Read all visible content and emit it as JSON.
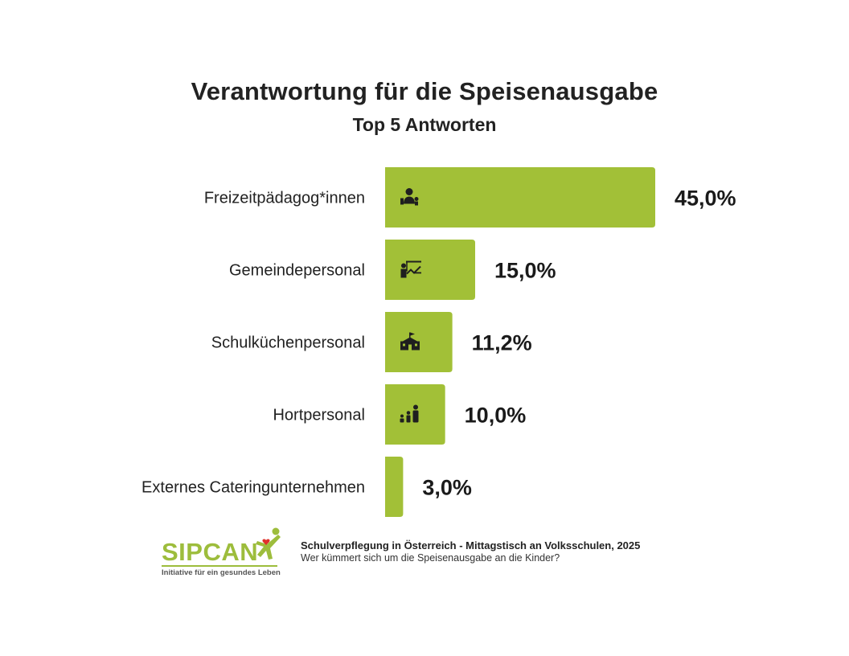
{
  "chart_data": {
    "type": "bar",
    "orientation": "horizontal",
    "title": "Verantwortung für die Speisenausgabe",
    "subtitle": "Top 5 Antworten",
    "categories": [
      "Freizeitpädagog*innen",
      "Gemeindepersonal",
      "Schulküchenpersonal",
      "Hortpersonal",
      "Externes Cateringunternehmen"
    ],
    "values": [
      45.0,
      15.0,
      11.2,
      10.0,
      3.0
    ],
    "value_labels": [
      "45,0%",
      "15,0%",
      "11,2%",
      "10,0%",
      "3,0%"
    ],
    "icons": [
      "caregiver-icon",
      "teacher-board-icon",
      "school-building-icon",
      "family-icon",
      null
    ],
    "bar_color": "#a2c037",
    "xlim": [
      0,
      45
    ],
    "grid": false,
    "legend": "none"
  },
  "footer": {
    "logo_text": "SIPCAN",
    "logo_tagline": "Initiative für ein gesundes Leben",
    "source_title": "Schulverpflegung in Österreich - Mittagstisch an Volksschulen, 2025",
    "source_subtitle": "Wer kümmert sich um die Speisenausgabe an die Kinder?"
  },
  "colors": {
    "accent": "#a2c037",
    "logo_green": "#9dbd3c",
    "logo_heart": "#e0312b",
    "text": "#222222"
  }
}
